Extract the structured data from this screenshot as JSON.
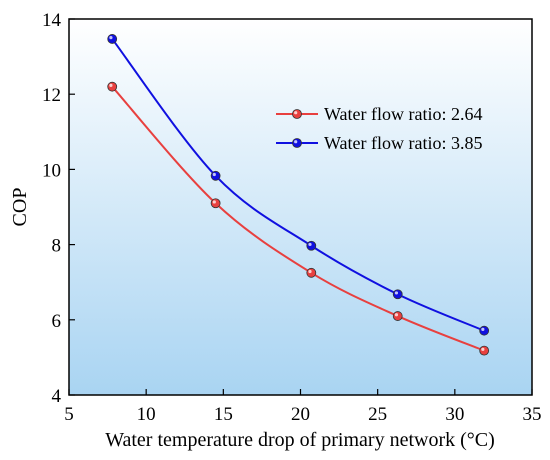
{
  "chart_data": {
    "type": "line",
    "xlabel": "Water temperature drop of primary network (°C)",
    "ylabel": "COP",
    "xlim": [
      5,
      35
    ],
    "ylim": [
      4,
      14
    ],
    "xticks": [
      "5",
      "10",
      "15",
      "20",
      "25",
      "30",
      "35"
    ],
    "yticks": [
      "4",
      "6",
      "8",
      "10",
      "12",
      "14"
    ],
    "grid": false,
    "background": "gradient white-to-light-blue",
    "legend_position": "top-right",
    "series": [
      {
        "name": "Water flow ratio: 2.64",
        "color": "#e8403f",
        "x": [
          7.8,
          14.5,
          20.7,
          26.3,
          31.9
        ],
        "y": [
          12.2,
          9.1,
          7.25,
          6.1,
          5.18
        ]
      },
      {
        "name": "Water flow ratio: 3.85",
        "color": "#1010e0",
        "x": [
          7.8,
          14.5,
          20.7,
          26.3,
          31.9
        ],
        "y": [
          13.47,
          9.83,
          7.97,
          6.68,
          5.71
        ]
      }
    ]
  },
  "colors": {
    "plot_bg_top": "#ffffff",
    "plot_bg_bottom": "#a9d4f2"
  }
}
